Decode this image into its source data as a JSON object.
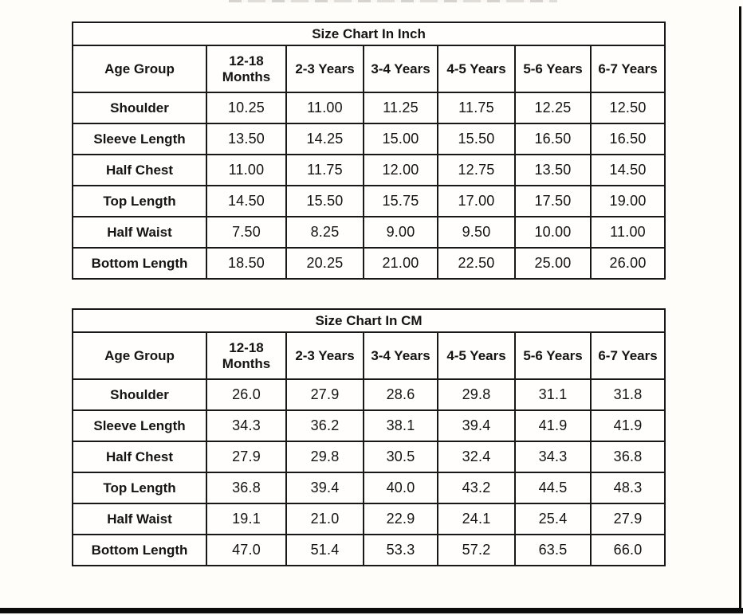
{
  "page": {
    "background_color": "#fffdfa",
    "frame_color": "#0c0c0c",
    "text_color": "#141414"
  },
  "tables": [
    {
      "title": "Size Chart In Inch",
      "corner_label": "Age Group",
      "columns": [
        "12-18 Months",
        "2-3 Years",
        "3-4 Years",
        "4-5 Years",
        "5-6 Years",
        "6-7 Years"
      ],
      "rows": [
        {
          "label": "Shoulder",
          "values": [
            "10.25",
            "11.00",
            "11.25",
            "11.75",
            "12.25",
            "12.50"
          ]
        },
        {
          "label": "Sleeve Length",
          "values": [
            "13.50",
            "14.25",
            "15.00",
            "15.50",
            "16.50",
            "16.50"
          ]
        },
        {
          "label": "Half Chest",
          "values": [
            "11.00",
            "11.75",
            "12.00",
            "12.75",
            "13.50",
            "14.50"
          ]
        },
        {
          "label": "Top Length",
          "values": [
            "14.50",
            "15.50",
            "15.75",
            "17.00",
            "17.50",
            "19.00"
          ]
        },
        {
          "label": "Half Waist",
          "values": [
            "7.50",
            "8.25",
            "9.00",
            "9.50",
            "10.00",
            "11.00"
          ]
        },
        {
          "label": "Bottom Length",
          "values": [
            "18.50",
            "20.25",
            "21.00",
            "22.50",
            "25.00",
            "26.00"
          ]
        }
      ]
    },
    {
      "title": "Size Chart In CM",
      "corner_label": "Age Group",
      "columns": [
        "12-18 Months",
        "2-3 Years",
        "3-4 Years",
        "4-5 Years",
        "5-6 Years",
        "6-7 Years"
      ],
      "rows": [
        {
          "label": "Shoulder",
          "values": [
            "26.0",
            "27.9",
            "28.6",
            "29.8",
            "31.1",
            "31.8"
          ]
        },
        {
          "label": "Sleeve Length",
          "values": [
            "34.3",
            "36.2",
            "38.1",
            "39.4",
            "41.9",
            "41.9"
          ]
        },
        {
          "label": "Half Chest",
          "values": [
            "27.9",
            "29.8",
            "30.5",
            "32.4",
            "34.3",
            "36.8"
          ]
        },
        {
          "label": "Top Length",
          "values": [
            "36.8",
            "39.4",
            "40.0",
            "43.2",
            "44.5",
            "48.3"
          ]
        },
        {
          "label": "Half Waist",
          "values": [
            "19.1",
            "21.0",
            "22.9",
            "24.1",
            "25.4",
            "27.9"
          ]
        },
        {
          "label": "Bottom Length",
          "values": [
            "47.0",
            "51.4",
            "53.3",
            "57.2",
            "63.5",
            "66.0"
          ]
        }
      ]
    }
  ]
}
